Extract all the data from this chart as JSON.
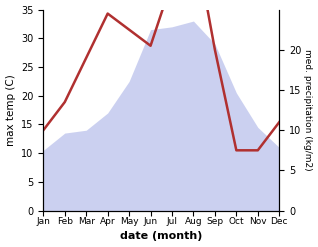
{
  "months": [
    "Jan",
    "Feb",
    "Mar",
    "Apr",
    "May",
    "Jun",
    "Jul",
    "Aug",
    "Sep",
    "Oct",
    "Nov",
    "Dec"
  ],
  "max_temp": [
    10.5,
    13.5,
    14.0,
    17.0,
    22.5,
    31.5,
    32.0,
    33.0,
    29.0,
    20.5,
    14.5,
    11.0
  ],
  "precipitation": [
    10.0,
    13.5,
    19.0,
    24.5,
    22.5,
    20.5,
    28.5,
    34.5,
    20.0,
    7.5,
    7.5,
    11.0
  ],
  "temp_ylim": [
    0,
    35
  ],
  "precip_ylim": [
    0,
    25
  ],
  "temp_yticks": [
    0,
    5,
    10,
    15,
    20,
    25,
    30,
    35
  ],
  "precip_yticks": [
    0,
    5,
    10,
    15,
    20
  ],
  "fill_color": "#b0b8e8",
  "fill_alpha": 0.65,
  "line_color": "#b03030",
  "line_width": 1.8,
  "xlabel": "date (month)",
  "ylabel_left": "max temp (C)",
  "ylabel_right": "med. precipitation (kg/m2)",
  "background_color": "#ffffff"
}
